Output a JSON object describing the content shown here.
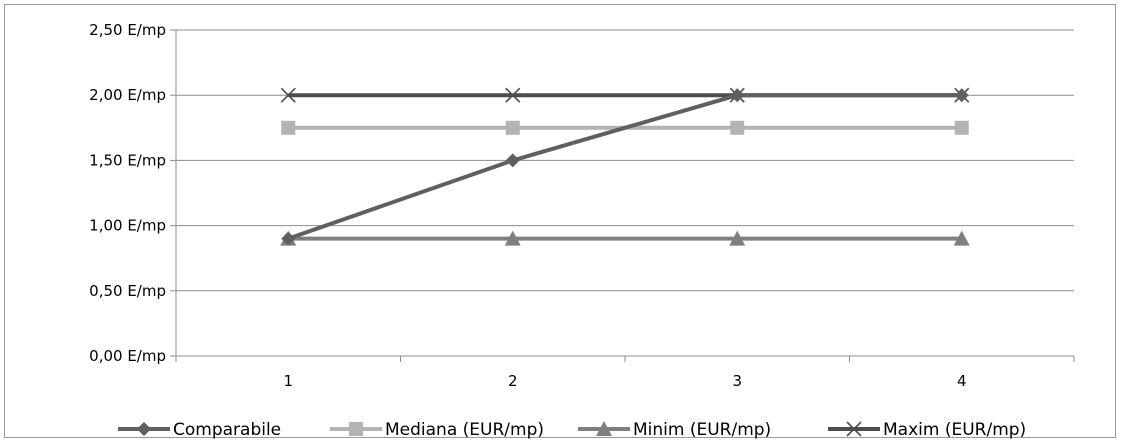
{
  "chart_data": {
    "type": "line",
    "categories": [
      "1",
      "2",
      "3",
      "4"
    ],
    "yticks": [
      "0,00 E/mp",
      "0,50 E/mp",
      "1,00 E/mp",
      "1,50 E/mp",
      "2,00 E/mp",
      "2,50 E/mp"
    ],
    "ylim": [
      0,
      2.5
    ],
    "grid": true,
    "legend_position": "bottom",
    "series": [
      {
        "name": "Comparabile",
        "values": [
          0.9,
          1.5,
          2.0,
          2.0
        ],
        "color": "#5f5f5f",
        "marker": "diamond"
      },
      {
        "name": "Mediana (EUR/mp)",
        "values": [
          1.75,
          1.75,
          1.75,
          1.75
        ],
        "color": "#b3b3b3",
        "marker": "square"
      },
      {
        "name": "Minim (EUR/mp)",
        "values": [
          0.9,
          0.9,
          0.9,
          0.9
        ],
        "color": "#7f7f7f",
        "marker": "triangle"
      },
      {
        "name": "Maxim (EUR/mp)",
        "values": [
          2.0,
          2.0,
          2.0,
          2.0
        ],
        "color": "#4d4d4d",
        "marker": "x"
      }
    ]
  }
}
